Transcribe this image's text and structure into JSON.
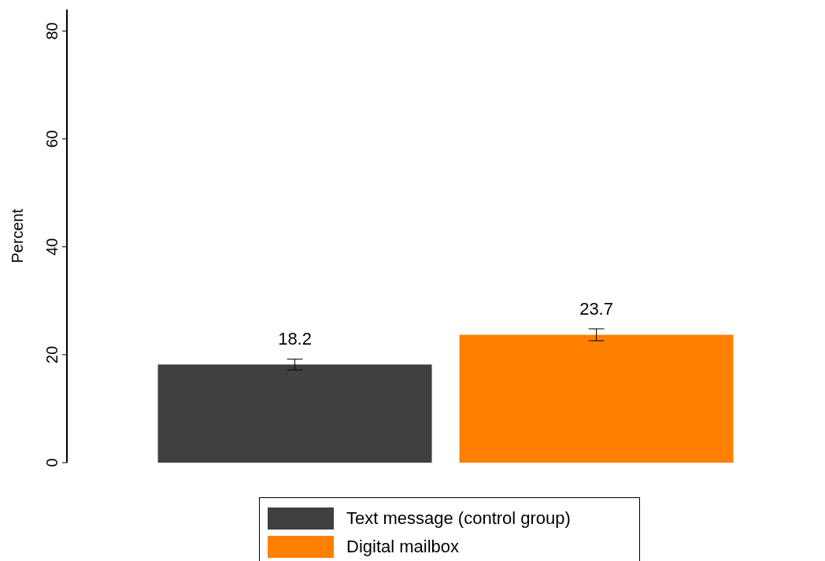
{
  "chart_data": {
    "type": "bar",
    "ylabel": "Percent",
    "categories": [
      null
    ],
    "series": [
      {
        "name": "Text message (control group)",
        "color": "#404040",
        "values": [
          18.2
        ],
        "errors": [
          1.0
        ]
      },
      {
        "name": "Digital mailbox",
        "color": "#ff7f00",
        "values": [
          23.7
        ],
        "errors": [
          1.1
        ]
      }
    ],
    "ylim": [
      0,
      84
    ],
    "yticks": [
      0,
      20,
      40,
      60,
      80
    ],
    "grid": false,
    "legend": "bottom",
    "data_labels": true
  }
}
